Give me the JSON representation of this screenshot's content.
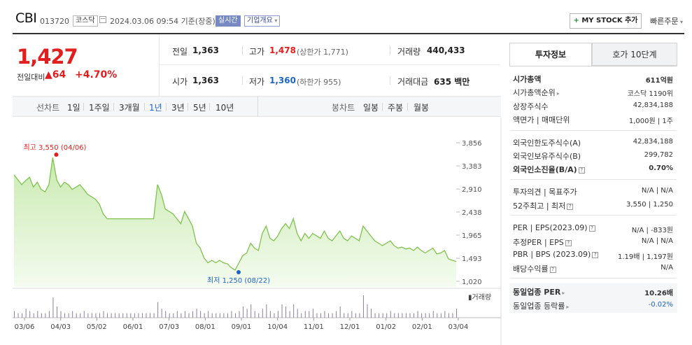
{
  "header": {
    "company": "CBI",
    "code": "013720",
    "market": "코스닥",
    "datetime": "2024.03.06 09:54 기준(장중)",
    "realtime_badge": "실시간",
    "overview_badge": "기업개요",
    "my_stock_button": "MY STOCK 추가",
    "quick_order": "빠른주문"
  },
  "quote": {
    "price": "1,427",
    "diff_label": "전일대비",
    "diff_value": "64",
    "diff_pct": "+4.70%",
    "prev_close_label": "전일",
    "prev_close": "1,363",
    "high_label": "고가",
    "high": "1,478",
    "upper_limit": "(상한가 1,771)",
    "volume_label": "거래량",
    "volume": "440,433",
    "open_label": "시가",
    "open": "1,363",
    "low_label": "저가",
    "low": "1,360",
    "lower_limit": "(하한가 955)",
    "amount_label": "거래대금",
    "amount": "635 백만"
  },
  "chart_tabs": {
    "line_label": "선차트",
    "periods": [
      "1일",
      "1주일",
      "3개월",
      "1년",
      "3년",
      "5년",
      "10년"
    ],
    "selected": "1년",
    "candle_label": "봉차트",
    "candles": [
      "일봉",
      "주봉",
      "월봉"
    ]
  },
  "chart_data": {
    "type": "area",
    "y_ticks": [
      "3,856",
      "3,383",
      "2,910",
      "2,438",
      "1,965",
      "1,493",
      "1,020"
    ],
    "ylim": [
      1020,
      3856
    ],
    "x_ticks": [
      "03/06",
      "04/03",
      "05/02",
      "06/01",
      "07/03",
      "08/01",
      "09/01",
      "10/04",
      "11/01",
      "12/01",
      "01/02",
      "02/01",
      "03/04"
    ],
    "high_annotation": "최고 3,550 (04/06)",
    "low_annotation": "최저 1,250 (08/22)",
    "volume_label": "거래량",
    "series": [
      {
        "name": "",
        "values": [
          3200,
          3100,
          3000,
          3080,
          3150,
          2950,
          3050,
          2900,
          2850,
          3000,
          3550,
          3100,
          2950,
          3050,
          3000,
          2900,
          2950,
          3000,
          2900,
          2800,
          2750,
          2700,
          2600,
          2400,
          2300,
          2300,
          2300,
          2300,
          2300,
          2300,
          2300,
          2300,
          2300,
          2300,
          2300,
          2300,
          2300,
          3000,
          2800,
          2500,
          2450,
          2400,
          2300,
          2200,
          2450,
          2300,
          2150,
          1800,
          1700,
          1500,
          1400,
          1450,
          1400,
          1450,
          1400,
          1380,
          1300,
          1250,
          1400,
          1550,
          1600,
          1800,
          1700,
          1650,
          2000,
          2150,
          1900,
          1850,
          1950,
          2100,
          2200,
          2100,
          2300,
          2000,
          1850,
          2000,
          1900,
          2000,
          1950,
          1900,
          2050,
          1900,
          1850,
          1950,
          2050,
          1900,
          1850,
          1950,
          1900,
          1850,
          2150,
          2050,
          1950,
          1850,
          1800,
          1750,
          1800,
          1850,
          1750,
          1700,
          1720,
          1680,
          1700,
          1650,
          1720,
          1650,
          1600,
          1650,
          1700,
          1580,
          1600,
          1650,
          1480,
          1450,
          1427
        ]
      }
    ],
    "volume_values": [
      3,
      2,
      2,
      4,
      3,
      2,
      3,
      2,
      2,
      3,
      9,
      5,
      3,
      2,
      2,
      3,
      2,
      2,
      3,
      2,
      2,
      2,
      2,
      3,
      2,
      2,
      2,
      2,
      2,
      2,
      2,
      2,
      2,
      2,
      2,
      2,
      2,
      7,
      4,
      3,
      2,
      2,
      3,
      2,
      3,
      2,
      3,
      4,
      3,
      2,
      3,
      2,
      2,
      2,
      2,
      2,
      3,
      2,
      3,
      5,
      4,
      6,
      3,
      2,
      4,
      6,
      3,
      2,
      3,
      6,
      5,
      3,
      6,
      4,
      2,
      3,
      3,
      4,
      2,
      2,
      3,
      2,
      2,
      3,
      5,
      2,
      2,
      3,
      2,
      2,
      10,
      6,
      4,
      2,
      2,
      2,
      2,
      3,
      2,
      2,
      2,
      2,
      2,
      2,
      3,
      2,
      2,
      2,
      3,
      2,
      2,
      3,
      2,
      2,
      4
    ]
  },
  "invest_info": {
    "tab_active": "투자정보",
    "tab_other": "호가 10단계",
    "rows": [
      {
        "label": "시가총액",
        "value": "611억원"
      },
      {
        "label": "시가총액순위",
        "value": "코스닥 1190위"
      },
      {
        "label": "상장주식수",
        "value": "42,834,188"
      },
      {
        "label": "액면가 | 매매단위",
        "value": "1,000원 | 1주"
      },
      {
        "label": "외국인한도주식수(A)",
        "value": "42,834,188"
      },
      {
        "label": "외국인보유주식수(B)",
        "value": "299,782"
      },
      {
        "label": "외국인소진율(B/A)",
        "value": "0.70%"
      },
      {
        "label": "투자의견 | 목표주가",
        "value": "N/A | N/A"
      },
      {
        "label": "52주최고 | 최저",
        "value": "3,550 | 1,250"
      },
      {
        "label": "PER | EPS(2023.09)",
        "value": "N/A | -833원"
      },
      {
        "label": "추정PER | EPS",
        "value": "N/A | N/A"
      },
      {
        "label": "PBR | BPS (2023.09)",
        "value": "1.19배 | 1,197원"
      },
      {
        "label": "배당수익률",
        "value": "N/A"
      },
      {
        "label": "동일업종 PER",
        "value": "10.26배"
      },
      {
        "label": "동일업종 등락률",
        "value": "-0.02%"
      }
    ]
  }
}
